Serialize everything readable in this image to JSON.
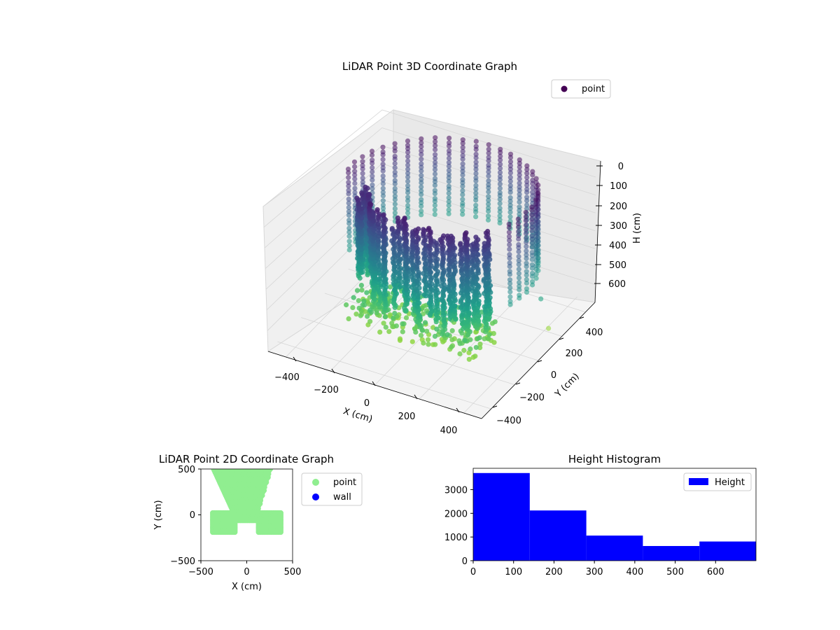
{
  "chart_data": [
    {
      "id": "scatter3d",
      "type": "scatter",
      "projection": "3d",
      "title": "LiDAR Point 3D Coordinate Graph",
      "xlabel": "X (cm)",
      "ylabel": "Y (cm)",
      "zlabel": "H (cm)",
      "x_ticks": [
        "−400",
        "−200",
        "0",
        "200",
        "400"
      ],
      "y_ticks": [
        "−400",
        "−200",
        "0",
        "200",
        "400"
      ],
      "z_ticks": [
        "0",
        "100",
        "200",
        "300",
        "400",
        "500",
        "600"
      ],
      "xlim": [
        -480,
        480
      ],
      "ylim": [
        -480,
        480
      ],
      "zlim": [
        0,
        700
      ],
      "z_axis_inverted": true,
      "colormap": "viridis",
      "legend": {
        "label": "point",
        "placement": "top-right",
        "marker_color": "#440154"
      },
      "pane_color": "#f2f2f2",
      "grid": true
    },
    {
      "id": "scatter2d",
      "type": "scatter",
      "title": "LiDAR Point 2D Coordinate Graph",
      "xlabel": "X (cm)",
      "ylabel": "Y (cm)",
      "x_ticks": [
        "−500",
        "0",
        "500"
      ],
      "y_ticks": [
        "500",
        "0",
        "−500"
      ],
      "xlim": [
        -500,
        500
      ],
      "ylim": [
        -500,
        500
      ],
      "series": [
        {
          "name": "point",
          "color": "#90ee90"
        },
        {
          "name": "wall",
          "color": "#0000ff"
        }
      ],
      "legend_placement": "outside-right"
    },
    {
      "id": "histogram",
      "type": "bar",
      "title": "Height Histogram",
      "bin_edges": [
        0,
        140,
        280,
        420,
        560,
        700
      ],
      "values": [
        3700,
        2120,
        1060,
        620,
        810
      ],
      "xlim": [
        0,
        700
      ],
      "ylim": [
        0,
        3900
      ],
      "x_ticks": [
        "0",
        "100",
        "200",
        "300",
        "400",
        "500",
        "600"
      ],
      "y_ticks": [
        "0",
        "1000",
        "2000",
        "3000"
      ],
      "color": "#0000ff",
      "legend": {
        "label": "Height",
        "placement": "top-right"
      }
    }
  ]
}
